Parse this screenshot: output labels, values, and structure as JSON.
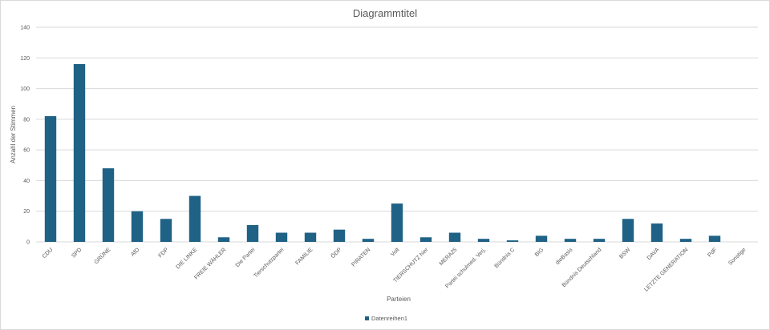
{
  "chart_data": {
    "type": "bar",
    "title": "Diagrammtitel",
    "xlabel": "Parteien",
    "ylabel": "Anzahl der Stimmen",
    "ylim": [
      0,
      140
    ],
    "yticks": [
      0,
      20,
      40,
      60,
      80,
      100,
      120,
      140
    ],
    "grid": true,
    "legend_position": "bottom",
    "bar_color": "#1f6285",
    "categories": [
      "CDU",
      "SPD",
      "GRÜNE",
      "AfD",
      "FDP",
      "DIE LINKE",
      "FREIE WÄHLER",
      "Die Partei",
      "Tierschutzpartei",
      "FAMILIE",
      "ÖDP",
      "PIRATEN",
      "Volt",
      "TIERSCHUTZ hier",
      "MERA25",
      "Partei schulmed. Verj.",
      "Bündnis C",
      "BIG",
      "dieBasis",
      "Bündnis Deutschland",
      "BSW",
      "DAVA",
      "LETZTE GENERATION",
      "PdF",
      "Sonstige"
    ],
    "series": [
      {
        "name": "Datenreihen1",
        "values": [
          82,
          116,
          48,
          20,
          15,
          30,
          3,
          11,
          6,
          6,
          8,
          2,
          25,
          3,
          6,
          2,
          1,
          4,
          2,
          2,
          15,
          12,
          2,
          4,
          0
        ]
      }
    ]
  }
}
